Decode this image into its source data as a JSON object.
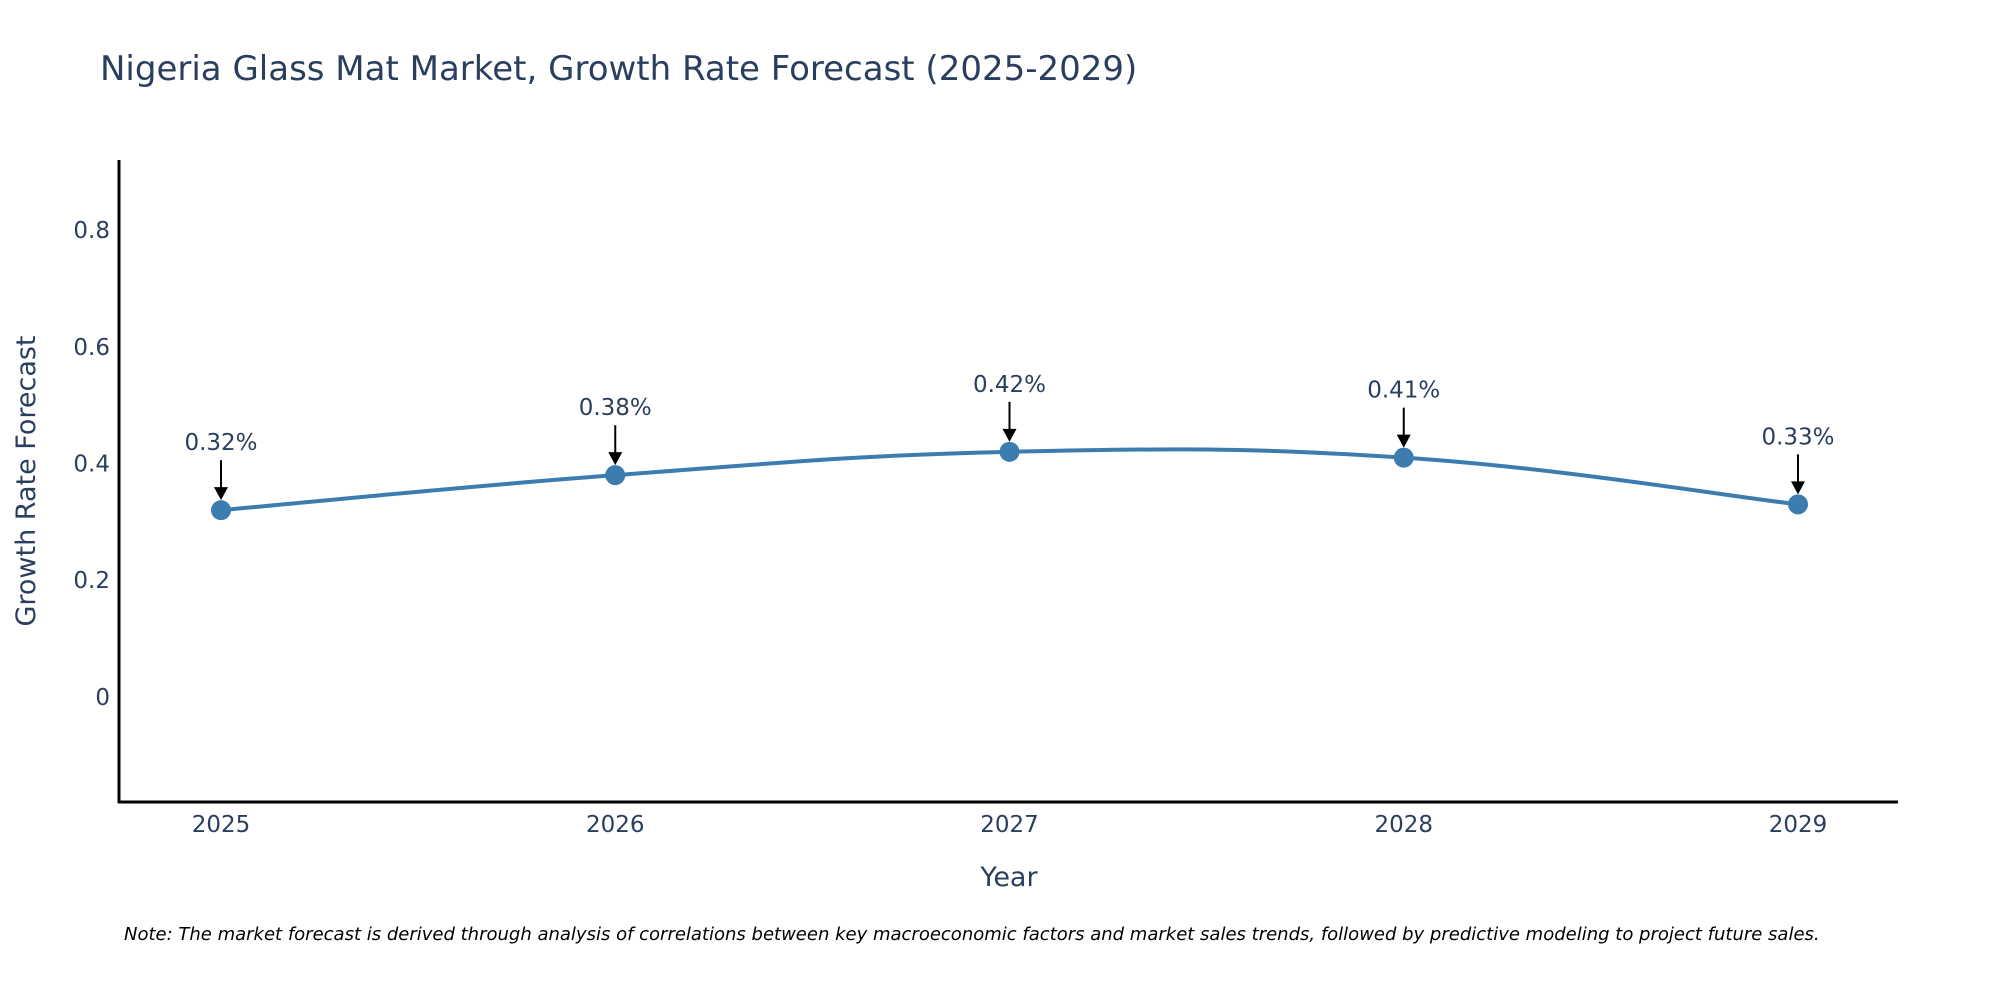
{
  "chart_data": {
    "type": "line",
    "title": "Nigeria Glass Mat Market, Growth Rate Forecast (2025-2029)",
    "xlabel": "Year",
    "ylabel": "Growth Rate Forecast",
    "categories": [
      "2025",
      "2026",
      "2027",
      "2028",
      "2029"
    ],
    "series": [
      {
        "name": "Growth Rate Forecast",
        "values": [
          0.32,
          0.38,
          0.42,
          0.41,
          0.33
        ],
        "labels": [
          "0.32%",
          "0.38%",
          "0.42%",
          "0.41%",
          "0.33%"
        ]
      }
    ],
    "ylim": [
      -0.18,
      0.92
    ],
    "yticks": [
      0,
      0.2,
      0.4,
      0.6,
      0.8
    ],
    "ytick_labels": [
      "0",
      "0.2",
      "0.4",
      "0.6",
      "0.8"
    ],
    "grid": false,
    "line_color": "#3d7caf",
    "annotation_color": "#000000",
    "note": "Note: The market forecast is derived through analysis of correlations between key macroeconomic factors and market sales trends, followed by predictive modeling to project future sales."
  }
}
